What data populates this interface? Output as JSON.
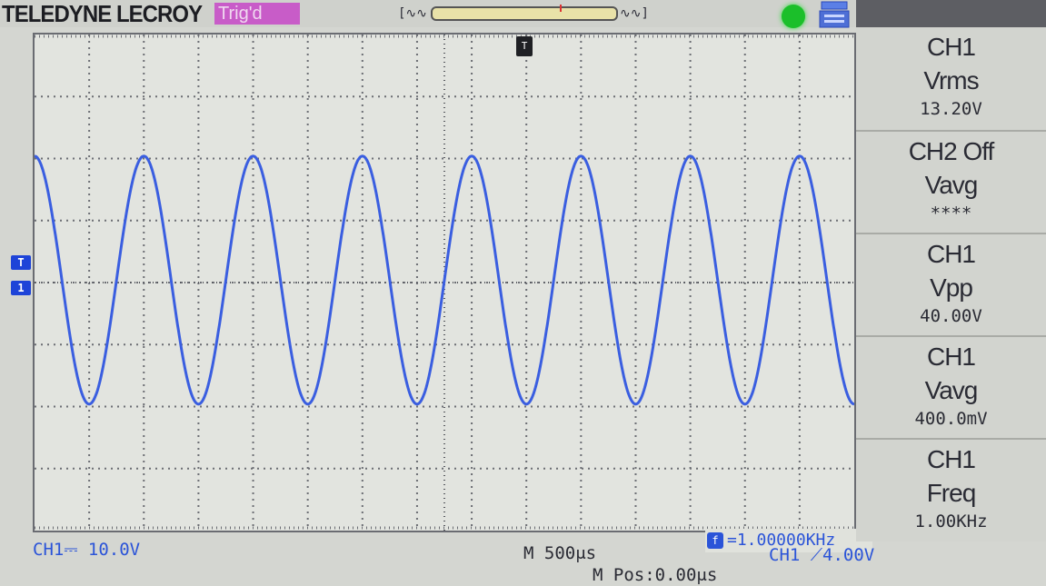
{
  "brand": "TELEDYNE LECROY",
  "trigger_status": "Trig'd",
  "colors": {
    "ch1_trace": "#3a5ee0",
    "trig_badge": "#c85cc8",
    "status_led": "#1bbf2a",
    "text_dark": "#2a2b34"
  },
  "icons": {
    "status": "run-status-led-icon",
    "usb": "usb-storage-icon",
    "trigger_position": "trigger-position-marker-icon"
  },
  "markers": {
    "trigger_position_label": "T",
    "trigger_level_label": "T",
    "ch1_ground_label": "1"
  },
  "frequency_counter": {
    "icon_label": "f",
    "text": "=1.00000KHz"
  },
  "bottom": {
    "ch1_scale": "CH1⎓ 10.0V",
    "timebase": "M 500μs",
    "main_position": "M Pos:0.00μs",
    "trigger_level": "CH1 ⟋4.00V"
  },
  "measurements": [
    {
      "source": "CH1",
      "type": "Vrms",
      "value": "13.20V"
    },
    {
      "source": "CH2 Off",
      "type": "Vavg",
      "value": "****"
    },
    {
      "source": "CH1",
      "type": "Vpp",
      "value": "40.00V"
    },
    {
      "source": "CH1",
      "type": "Vavg",
      "value": "400.0mV"
    },
    {
      "source": "CH1",
      "type": "Freq",
      "value": "1.00KHz"
    }
  ],
  "waveform": {
    "channel": "CH1",
    "shape": "sine",
    "volts_per_div": 10.0,
    "time_per_div_us": 500,
    "frequency_khz": 1.0,
    "vpp": 40.0,
    "offset_v": 0.4
  }
}
